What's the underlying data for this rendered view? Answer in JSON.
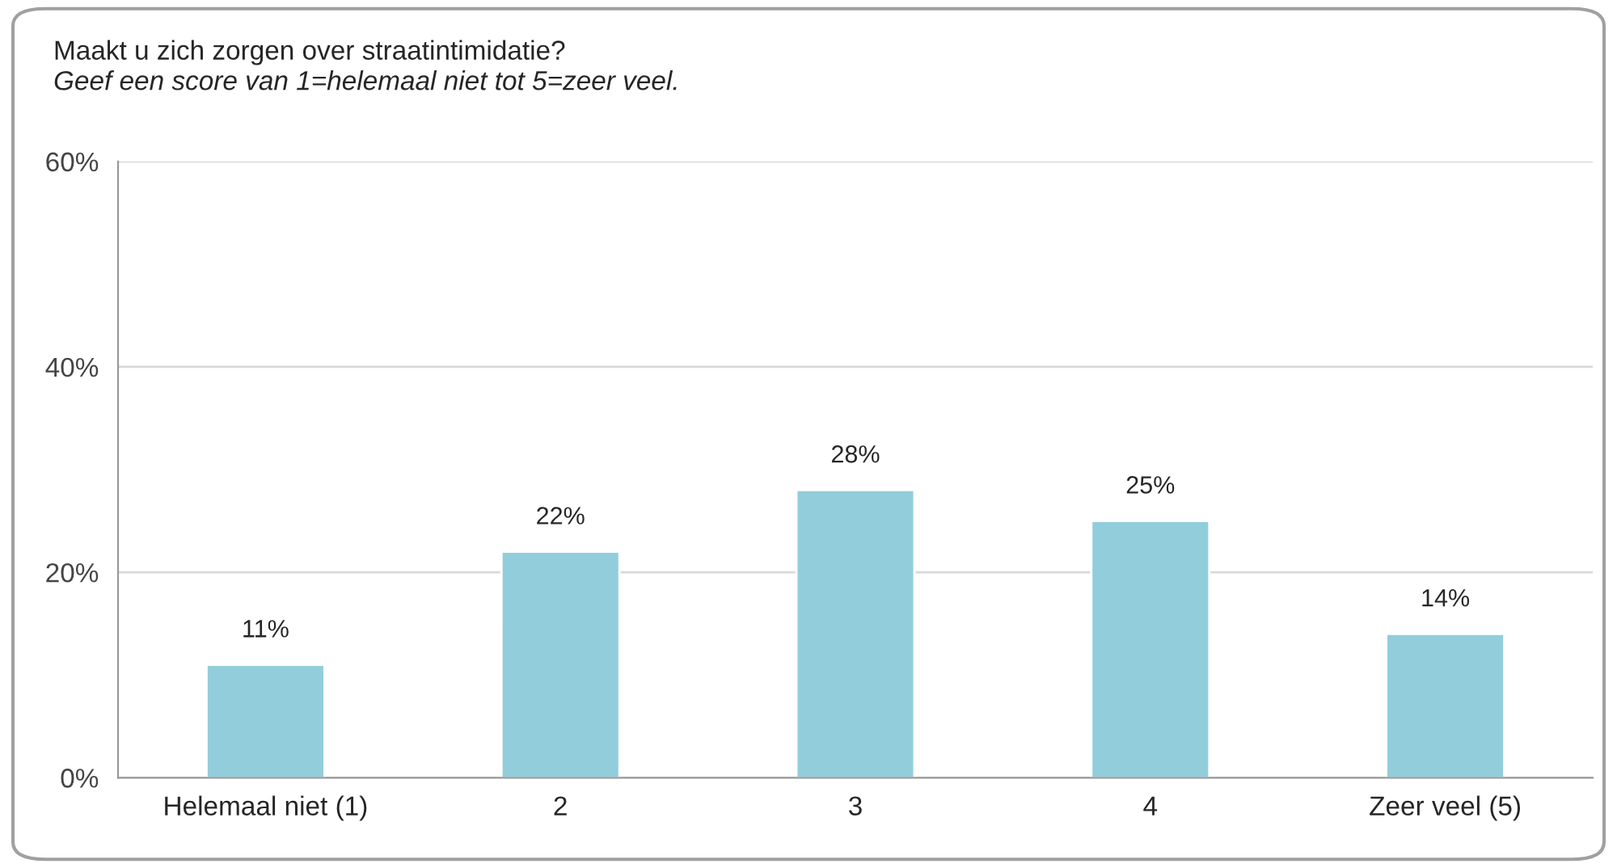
{
  "chart_data": {
    "type": "bar",
    "title": "Maakt u zich zorgen over straatintimidatie?",
    "subtitle": "Geef een score van 1=helemaal niet tot 5=zeer veel.",
    "categories": [
      "Helemaal niet (1)",
      "2",
      "3",
      "4",
      "Zeer veel (5)"
    ],
    "values": [
      11,
      22,
      28,
      25,
      14
    ],
    "value_labels": [
      "11%",
      "22%",
      "28%",
      "25%",
      "14%"
    ],
    "color": "#92cddc",
    "ylim": [
      0,
      60
    ],
    "yticks": [
      {
        "value": 0,
        "label": "0%"
      },
      {
        "value": 20,
        "label": "20%"
      },
      {
        "value": 40,
        "label": "40%"
      },
      {
        "value": 60,
        "label": "60%"
      }
    ],
    "grid": "y"
  }
}
